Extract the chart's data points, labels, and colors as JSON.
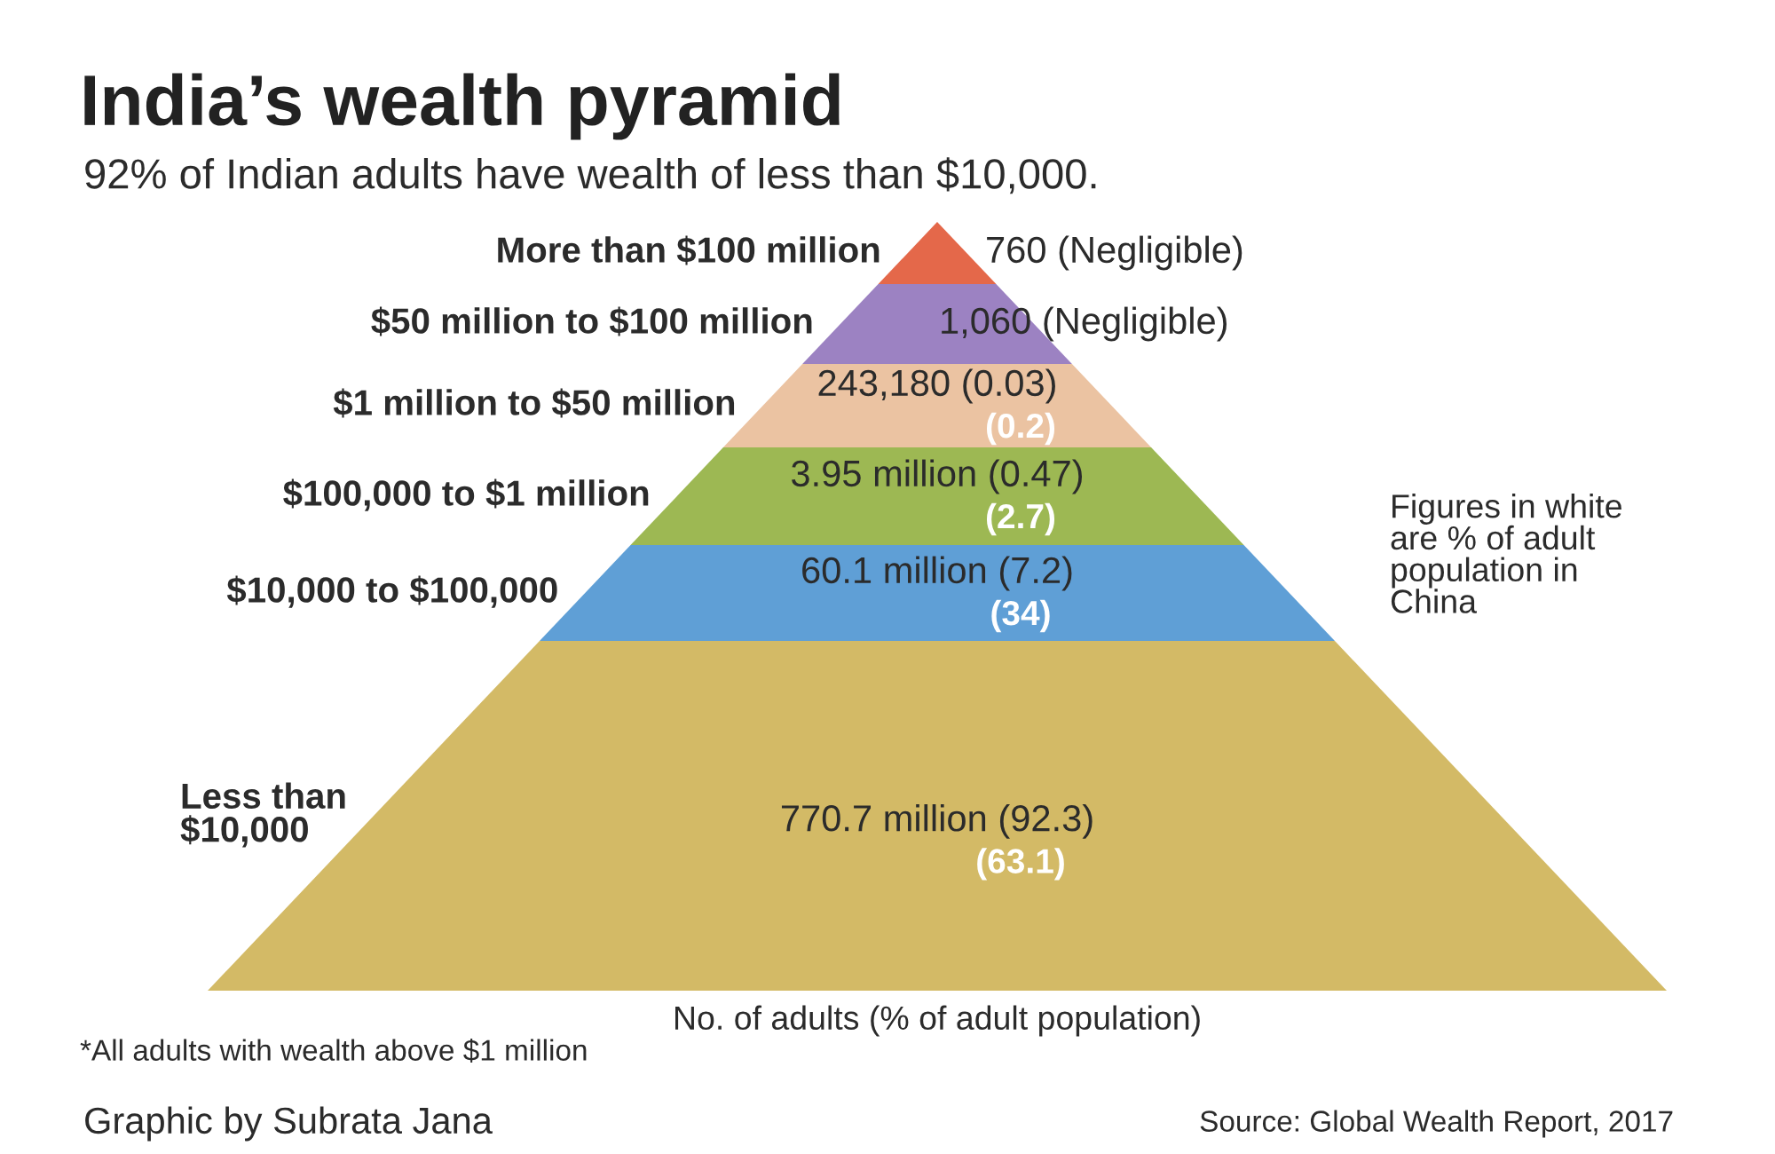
{
  "chart_data": {
    "type": "other",
    "title": "India’s wealth pyramid",
    "subtitle": "92% of Indian adults have wealth of less than $10,000.",
    "xlabel": "No. of adults (% of adult population)",
    "categories": [
      "More than $100 million",
      "$50 million to $100 million",
      "$1 million to $50 million",
      "$100,000 to $1 million",
      "$10,000 to $100,000",
      "Less than\n$10,000"
    ],
    "series": [
      {
        "colors": [
          "#e4684a",
          "#9c82c2",
          "#ebc3a2",
          "#9db853",
          "#5f9fd6",
          "#d3ba66"
        ],
        "values": [
          760,
          1060,
          243180,
          3950000,
          60100000,
          770700000
        ],
        "value_labels": [
          "760 (Negligible)",
          "1,060 (Negligible)",
          "243,180 (0.03)",
          "3.95 million (0.47)",
          "60.1 million (7.2)",
          "770.7 million (92.3)"
        ]
      },
      {
        "values": [
          null,
          null,
          0.2,
          2.7,
          34,
          63.1
        ],
        "value_labels": [
          null,
          null,
          "(0.2)",
          "(2.7)",
          "(34)",
          "(63.1)"
        ]
      }
    ],
    "annotations": [
      "Figures in white\nare % of adult\npopulation in\nChina",
      "*All adults with wealth above $1 million",
      "Graphic by Subrata Jana",
      "Source: Global Wealth Report, 2017"
    ]
  }
}
